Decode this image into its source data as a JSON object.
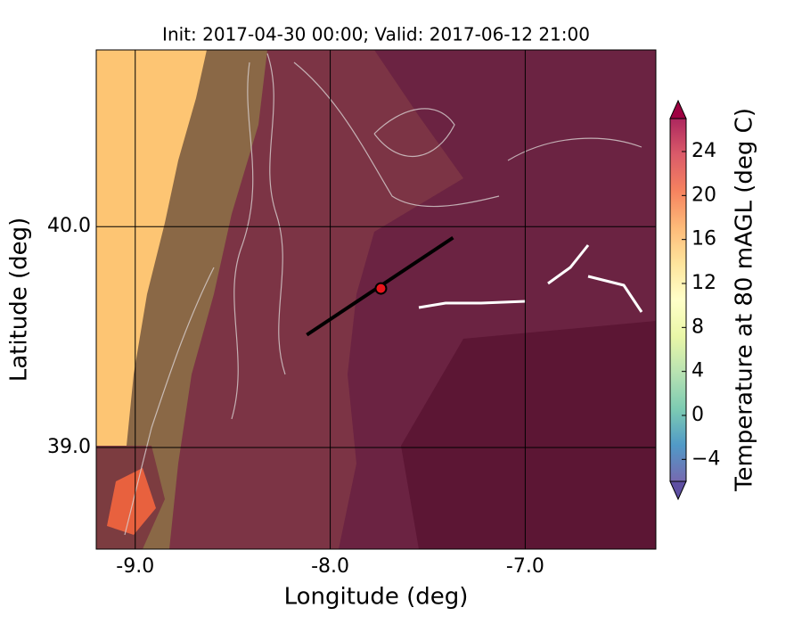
{
  "chart_data": {
    "type": "map",
    "title": "Init: 2017-04-30 00:00; Valid: 2017-06-12 21:00",
    "xlabel": "Longitude (deg)",
    "ylabel": "Latitude (deg)",
    "xlim": [
      -9.2,
      -6.33
    ],
    "ylim": [
      38.54,
      40.8
    ],
    "xticks": [
      {
        "value": -9,
        "label": "-9.0"
      },
      {
        "value": -8,
        "label": "-8.0"
      },
      {
        "value": -7,
        "label": "-7.0"
      }
    ],
    "yticks": [
      {
        "value": 39,
        "label": "39.0"
      },
      {
        "value": 40,
        "label": "40.0"
      }
    ],
    "grid": true,
    "transect": {
      "lon": [
        -8.12,
        -7.37
      ],
      "lat": [
        39.51,
        39.95
      ],
      "color": "#000000"
    },
    "point": {
      "lon": -7.74,
      "lat": 39.72,
      "color": "#e8141b"
    },
    "colorbar": {
      "label": "Temperature at 80 mAGL (deg C)",
      "lim": [
        -6,
        27
      ],
      "ticks": [
        {
          "value": -4,
          "label": "−4"
        },
        0,
        4,
        8,
        12,
        16,
        20,
        24
      ],
      "colors": [
        "#5e4fa2",
        "#3288bd",
        "#66c2a5",
        "#abdda4",
        "#e6f598",
        "#ffffbf",
        "#fee08b",
        "#fdae61",
        "#f46d43",
        "#d53e4f",
        "#9e0142"
      ]
    }
  }
}
